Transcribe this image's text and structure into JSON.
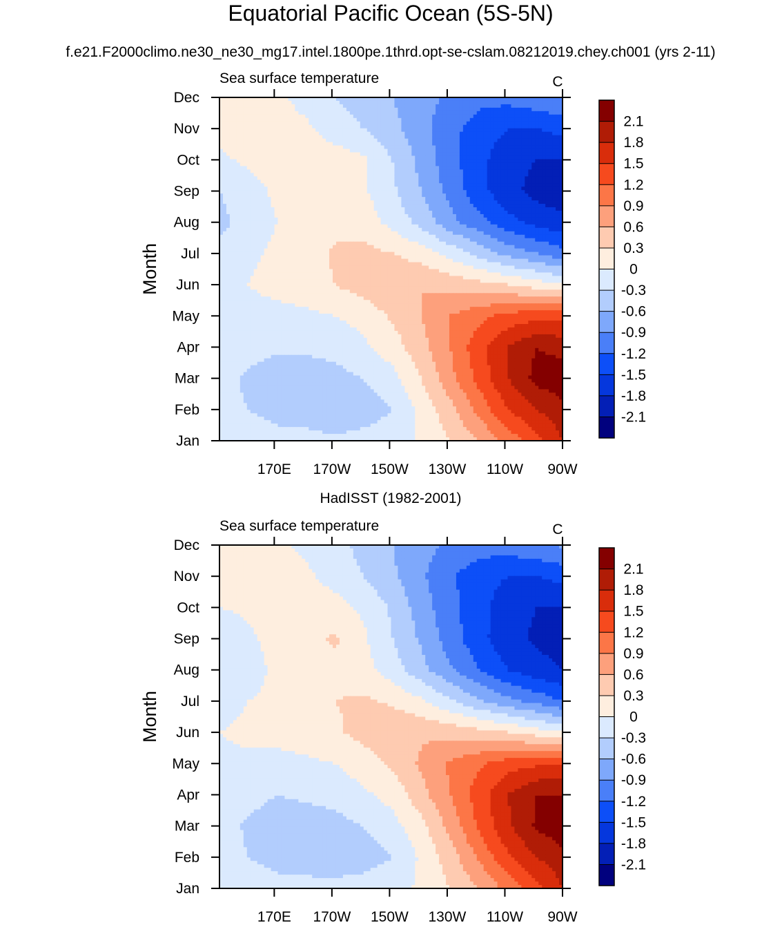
{
  "figure": {
    "title": "Equatorial Pacific Ocean (5S-5N)",
    "subtitle": "f.e21.F2000climo.ne30_ne30_mg17.intel.1800pe.1thrd.opt-se-cslam.08212019.chey.ch001 (yrs 2-11)"
  },
  "palette": {
    "levels": [
      -2.1,
      -1.8,
      -1.5,
      -1.2,
      -0.9,
      -0.6,
      -0.3,
      0,
      0.3,
      0.6,
      0.9,
      1.2,
      1.5,
      1.8,
      2.1
    ],
    "colors": [
      "#01017e",
      "#031fb6",
      "#0537dd",
      "#0d4ff8",
      "#4a7ff8",
      "#7ea8fb",
      "#b2cdfd",
      "#dbeafe",
      "#feeedf",
      "#fecbb1",
      "#fda07c",
      "#fc7647",
      "#f64a1e",
      "#d92d0b",
      "#b01c06",
      "#840000"
    ]
  },
  "chart_data": [
    {
      "type": "heatmap",
      "header": "",
      "left_string": "Sea surface temperature",
      "right_string": "C",
      "ylabel": "Month",
      "xlabel": "",
      "x_ticks": [
        "170E",
        "170W",
        "150W",
        "130W",
        "110W",
        "90W"
      ],
      "x_tick_lon": [
        170,
        190,
        210,
        230,
        250,
        270
      ],
      "y_ticks": [
        "Jan",
        "Feb",
        "Mar",
        "Apr",
        "May",
        "Jun",
        "Jul",
        "Aug",
        "Sep",
        "Oct",
        "Nov",
        "Dec"
      ],
      "xlim_lon": [
        151,
        270
      ],
      "ylim_month": [
        1,
        12
      ],
      "lon": [
        151,
        161,
        171,
        181,
        191,
        201,
        211,
        221,
        231,
        241,
        251,
        261,
        270
      ],
      "months": [
        1,
        2,
        3,
        4,
        5,
        6,
        7,
        8,
        9,
        10,
        11,
        12
      ],
      "values": [
        [
          -0.15,
          -0.15,
          -0.2,
          -0.2,
          -0.25,
          -0.2,
          -0.15,
          0.05,
          0.3,
          0.6,
          1.0,
          1.4,
          1.8
        ],
        [
          -0.2,
          -0.3,
          -0.4,
          -0.45,
          -0.5,
          -0.45,
          -0.3,
          0.1,
          0.5,
          1.0,
          1.5,
          1.8,
          2.0
        ],
        [
          -0.2,
          -0.35,
          -0.45,
          -0.45,
          -0.4,
          -0.3,
          -0.1,
          0.3,
          0.8,
          1.3,
          1.8,
          2.2,
          2.3
        ],
        [
          -0.15,
          -0.2,
          -0.25,
          -0.25,
          -0.2,
          -0.05,
          0.15,
          0.5,
          0.9,
          1.4,
          1.8,
          2.1,
          2.0
        ],
        [
          -0.1,
          -0.1,
          -0.1,
          -0.05,
          0.0,
          0.1,
          0.35,
          0.6,
          0.9,
          1.1,
          1.3,
          1.4,
          1.4
        ],
        [
          -0.05,
          0.0,
          0.1,
          0.15,
          0.3,
          0.45,
          0.6,
          0.6,
          0.5,
          0.4,
          0.3,
          0.15,
          0.0
        ],
        [
          -0.2,
          -0.05,
          0.05,
          0.1,
          0.35,
          0.4,
          0.3,
          0.15,
          -0.1,
          -0.4,
          -0.7,
          -0.9,
          -1.1
        ],
        [
          -0.4,
          -0.15,
          0.0,
          0.1,
          0.2,
          0.15,
          -0.1,
          -0.4,
          -0.8,
          -1.1,
          -1.4,
          -1.6,
          -1.7
        ],
        [
          -0.3,
          -0.1,
          0.05,
          0.15,
          0.15,
          0.05,
          -0.25,
          -0.6,
          -1.0,
          -1.4,
          -1.7,
          -1.9,
          -2.0
        ],
        [
          -0.05,
          0.05,
          0.1,
          0.2,
          0.15,
          0.05,
          -0.3,
          -0.7,
          -1.1,
          -1.4,
          -1.7,
          -1.8,
          -1.8
        ],
        [
          0.1,
          0.15,
          0.15,
          0.05,
          -0.15,
          -0.3,
          -0.5,
          -0.8,
          -1.1,
          -1.35,
          -1.5,
          -1.5,
          -1.4
        ],
        [
          0.2,
          0.1,
          0.05,
          -0.1,
          -0.3,
          -0.45,
          -0.6,
          -0.8,
          -0.95,
          -1.1,
          -1.1,
          -1.0,
          -0.9
        ]
      ]
    },
    {
      "type": "heatmap",
      "header": "HadISST (1982-2001)",
      "left_string": "Sea surface temperature",
      "right_string": "C",
      "ylabel": "Month",
      "xlabel": "",
      "x_ticks": [
        "170E",
        "170W",
        "150W",
        "130W",
        "110W",
        "90W"
      ],
      "x_tick_lon": [
        170,
        190,
        210,
        230,
        250,
        270
      ],
      "y_ticks": [
        "Jan",
        "Feb",
        "Mar",
        "Apr",
        "May",
        "Jun",
        "Jul",
        "Aug",
        "Sep",
        "Oct",
        "Nov",
        "Dec"
      ],
      "xlim_lon": [
        151,
        270
      ],
      "ylim_month": [
        1,
        12
      ],
      "lon": [
        151,
        161,
        171,
        181,
        191,
        201,
        211,
        221,
        231,
        241,
        251,
        261,
        270
      ],
      "months": [
        1,
        2,
        3,
        4,
        5,
        6,
        7,
        8,
        9,
        10,
        11,
        12
      ],
      "values": [
        [
          -0.1,
          -0.15,
          -0.2,
          -0.2,
          -0.2,
          -0.15,
          -0.1,
          0.05,
          0.3,
          0.6,
          1.0,
          1.4,
          1.8
        ],
        [
          -0.15,
          -0.3,
          -0.4,
          -0.45,
          -0.5,
          -0.45,
          -0.3,
          0.05,
          0.45,
          0.95,
          1.45,
          1.8,
          2.0
        ],
        [
          -0.15,
          -0.35,
          -0.45,
          -0.45,
          -0.4,
          -0.3,
          -0.1,
          0.2,
          0.7,
          1.25,
          1.75,
          2.15,
          2.3
        ],
        [
          -0.1,
          -0.2,
          -0.3,
          -0.25,
          -0.2,
          -0.05,
          0.1,
          0.5,
          0.9,
          1.35,
          1.8,
          2.1,
          2.1
        ],
        [
          -0.05,
          -0.05,
          -0.1,
          -0.05,
          0.0,
          0.15,
          0.35,
          0.65,
          0.95,
          1.15,
          1.35,
          1.45,
          1.5
        ],
        [
          0.0,
          0.05,
          0.1,
          0.15,
          0.25,
          0.4,
          0.55,
          0.55,
          0.5,
          0.4,
          0.3,
          0.15,
          0.0
        ],
        [
          -0.1,
          0.0,
          0.05,
          0.15,
          0.3,
          0.35,
          0.25,
          0.05,
          -0.25,
          -0.55,
          -0.8,
          -1.0,
          -1.2
        ],
        [
          -0.25,
          -0.1,
          0.05,
          0.15,
          0.2,
          0.1,
          -0.15,
          -0.5,
          -0.85,
          -1.2,
          -1.5,
          -1.7,
          -1.8
        ],
        [
          -0.2,
          -0.05,
          0.1,
          0.2,
          0.35,
          0.05,
          -0.3,
          -0.65,
          -1.05,
          -1.4,
          -1.7,
          -1.85,
          -1.9
        ],
        [
          0.0,
          0.05,
          0.1,
          0.15,
          0.1,
          -0.05,
          -0.35,
          -0.75,
          -1.1,
          -1.4,
          -1.65,
          -1.8,
          -1.8
        ],
        [
          0.1,
          0.1,
          0.1,
          0.05,
          -0.1,
          -0.3,
          -0.55,
          -0.85,
          -1.15,
          -1.4,
          -1.5,
          -1.5,
          -1.4
        ],
        [
          0.15,
          0.1,
          0.05,
          -0.05,
          -0.2,
          -0.4,
          -0.6,
          -0.8,
          -0.95,
          -1.05,
          -1.05,
          -0.95,
          -0.85
        ]
      ]
    }
  ]
}
